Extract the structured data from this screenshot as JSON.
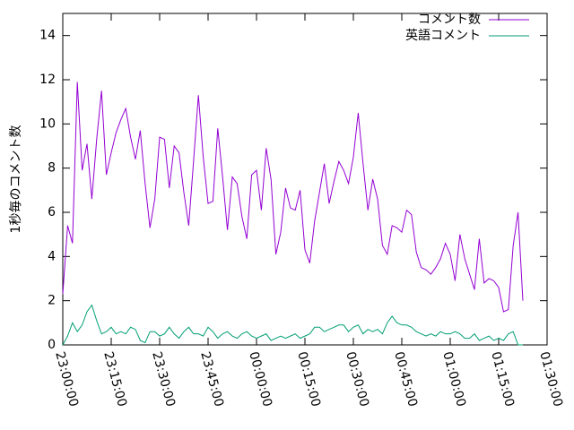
{
  "chart_data": {
    "type": "line",
    "ylabel": "1秒毎のコメント数",
    "x": [
      0,
      1.5,
      3,
      4.5,
      6,
      7.5,
      9,
      10.5,
      12,
      13.5,
      15,
      16.5,
      18,
      19.5,
      21,
      22.5,
      24,
      25.5,
      27,
      28.5,
      30,
      31.5,
      33,
      34.5,
      36,
      37.5,
      39,
      40.5,
      42,
      43.5,
      45,
      46.5,
      48,
      49.5,
      51,
      52.5,
      54,
      55.5,
      57,
      58.5,
      60,
      61.5,
      63,
      64.5,
      66,
      67.5,
      69,
      70.5,
      72,
      73.5,
      75,
      76.5,
      78,
      79.5,
      81,
      82.5,
      84,
      85.5,
      87,
      88.5,
      90,
      91.5,
      93,
      94.5,
      96,
      97.5,
      99,
      100.5,
      102,
      103.5,
      105,
      106.5,
      108,
      109.5,
      111,
      112.5,
      114,
      115.5,
      117,
      118.5,
      120,
      121.5,
      123,
      124.5,
      126,
      127.5,
      129,
      130.5,
      132,
      133.5,
      135,
      136.5,
      138,
      139.5,
      141,
      142.5
    ],
    "series": [
      {
        "name": "コメント数",
        "color": "#9400d3",
        "values": [
          2.3,
          5.4,
          4.6,
          11.9,
          7.9,
          9.1,
          6.6,
          9.3,
          11.5,
          7.7,
          8.7,
          9.6,
          10.2,
          10.7,
          9.4,
          8.4,
          9.7,
          7.3,
          5.3,
          6.6,
          9.4,
          9.3,
          7.1,
          9.0,
          8.7,
          6.9,
          5.4,
          8.3,
          11.3,
          8.5,
          6.4,
          6.5,
          9.8,
          7.6,
          5.2,
          7.6,
          7.3,
          5.8,
          4.8,
          7.7,
          7.9,
          6.1,
          8.9,
          7.5,
          4.1,
          5.1,
          7.1,
          6.2,
          6.1,
          7.0,
          4.3,
          3.7,
          5.6,
          6.9,
          8.2,
          6.4,
          7.4,
          8.3,
          7.9,
          7.3,
          8.5,
          10.5,
          8.2,
          6.1,
          7.5,
          6.6,
          4.5,
          4.1,
          5.4,
          5.3,
          5.1,
          6.1,
          5.9,
          4.2,
          3.5,
          3.4,
          3.2,
          3.5,
          3.9,
          4.6,
          4.1,
          2.9,
          5.0,
          3.9,
          3.2,
          2.5,
          4.8,
          2.8,
          3.0,
          2.9,
          2.6,
          1.5,
          1.6,
          4.5,
          6.0,
          2.0
        ]
      },
      {
        "name": "英語コメント",
        "color": "#009e73",
        "values": [
          0.0,
          0.4,
          1.0,
          0.6,
          0.9,
          1.5,
          1.8,
          1.1,
          0.5,
          0.6,
          0.8,
          0.5,
          0.6,
          0.5,
          0.8,
          0.7,
          0.2,
          0.1,
          0.6,
          0.6,
          0.4,
          0.5,
          0.8,
          0.5,
          0.3,
          0.6,
          0.8,
          0.5,
          0.5,
          0.4,
          0.8,
          0.6,
          0.3,
          0.5,
          0.6,
          0.4,
          0.3,
          0.5,
          0.6,
          0.4,
          0.3,
          0.4,
          0.5,
          0.2,
          0.3,
          0.4,
          0.3,
          0.4,
          0.5,
          0.3,
          0.4,
          0.5,
          0.8,
          0.8,
          0.6,
          0.7,
          0.8,
          0.9,
          0.9,
          0.6,
          0.8,
          0.9,
          0.5,
          0.7,
          0.6,
          0.7,
          0.5,
          1.0,
          1.3,
          1.0,
          0.9,
          0.9,
          0.8,
          0.6,
          0.5,
          0.4,
          0.5,
          0.4,
          0.6,
          0.5,
          0.5,
          0.6,
          0.5,
          0.3,
          0.3,
          0.5,
          0.2,
          0.3,
          0.4,
          0.2,
          0.3,
          0.2,
          0.5,
          0.6,
          0.0,
          0.0
        ]
      }
    ],
    "xlim": [
      0,
      150
    ],
    "xticks": [
      {
        "value": 0,
        "label": "23:00:00"
      },
      {
        "value": 15,
        "label": "23:15:00"
      },
      {
        "value": 30,
        "label": "23:30:00"
      },
      {
        "value": 45,
        "label": "23:45:00"
      },
      {
        "value": 60,
        "label": "00:00:00"
      },
      {
        "value": 75,
        "label": "00:15:00"
      },
      {
        "value": 90,
        "label": "00:30:00"
      },
      {
        "value": 105,
        "label": "00:45:00"
      },
      {
        "value": 120,
        "label": "01:00:00"
      },
      {
        "value": 135,
        "label": "01:15:00"
      },
      {
        "value": 150,
        "label": "01:30:00"
      }
    ],
    "ylim": [
      0,
      15
    ],
    "yticks": [
      0,
      2,
      4,
      6,
      8,
      10,
      12,
      14
    ],
    "legend": "top-right"
  }
}
